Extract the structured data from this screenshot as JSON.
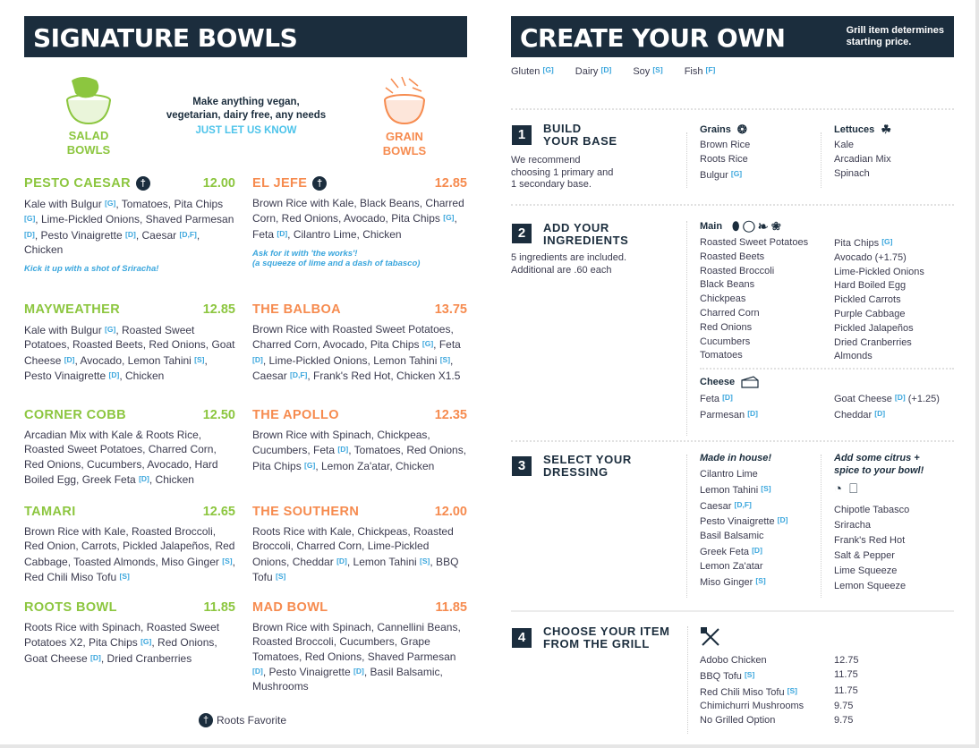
{
  "left": {
    "title": "SIGNATURE BOWLS",
    "salad_label": [
      "SALAD",
      "BOWLS"
    ],
    "grain_label": [
      "GRAIN",
      "BOWLS"
    ],
    "promo_line1": "Make anything vegan,",
    "promo_line2": "vegetarian, dairy free, any needs",
    "promo_link": "JUST LET US KNOW",
    "footer": "Roots Favorite",
    "colors": {
      "salad": "#8cc63f",
      "grain": "#f68b4f",
      "navy": "#1b2d3d",
      "tag": "#3aa6dd"
    },
    "salad_bowls": [
      {
        "name": "PESTO CAESAR",
        "favorite": true,
        "price": "12.00",
        "desc": [
          "Kale with Bulgur ",
          {
            "tag": "[G]"
          },
          ", Tomatoes, Pita Chips ",
          {
            "tag": "[G]"
          },
          ", Lime-Pickled Onions, Shaved Parmesan ",
          {
            "tag": "[D]"
          },
          ", Pesto Vinaigrette ",
          {
            "tag": "[D]"
          },
          ", Caesar ",
          {
            "tag": "[D,F]"
          },
          ", Chicken"
        ],
        "note": "Kick it up with a shot of Sriracha!"
      },
      {
        "name": "MAYWEATHER",
        "price": "12.85",
        "desc": [
          "Kale with Bulgur ",
          {
            "tag": "[G]"
          },
          ", Roasted Sweet Potatoes, Roasted Beets, Red Onions, Goat Cheese ",
          {
            "tag": "[D]"
          },
          ", Avocado, Lemon Tahini ",
          {
            "tag": "[S]"
          },
          ", Pesto Vinaigrette ",
          {
            "tag": "[D]"
          },
          ", Chicken"
        ]
      },
      {
        "name": "CORNER COBB",
        "price": "12.50",
        "desc": [
          "Arcadian Mix with Kale & Roots Rice, Roasted Sweet Potatoes, Charred Corn, Red Onions, Cucumbers, Avocado, Hard Boiled Egg, Greek Feta ",
          {
            "tag": "[D]"
          },
          ", Chicken"
        ]
      },
      {
        "name": "TAMARI",
        "price": "12.65",
        "desc": [
          "Brown Rice with Kale, Roasted Broccoli, Red Onion, Carrots, Pickled Jalapeños, Red Cabbage, Toasted Almonds, Miso Ginger ",
          {
            "tag": "[S]"
          },
          ", Red Chili Miso Tofu ",
          {
            "tag": "[S]"
          }
        ]
      },
      {
        "name": "ROOTS BOWL",
        "price": "11.85",
        "desc": [
          "Roots Rice with Spinach, Roasted Sweet Potatoes X2, Pita Chips ",
          {
            "tag": "[G]"
          },
          ", Red Onions, Goat Cheese ",
          {
            "tag": "[D]"
          },
          ", Dried Cranberries"
        ]
      }
    ],
    "grain_bowls": [
      {
        "name": "EL JEFE",
        "favorite": true,
        "price": "12.85",
        "desc": [
          "Brown Rice with Kale, Black Beans, Charred Corn, Red Onions, Avocado, Pita Chips ",
          {
            "tag": "[G]"
          },
          ", Feta ",
          {
            "tag": "[D]"
          },
          ", Cilantro Lime, Chicken"
        ],
        "note": "Ask for it with 'the works'!",
        "note2": "(a squeeze of lime and a dash of tabasco)"
      },
      {
        "name": "THE BALBOA",
        "price": "13.75",
        "desc": [
          "Brown Rice with Roasted Sweet Potatoes, Charred Corn, Avocado, Pita Chips ",
          {
            "tag": "[G]"
          },
          ", Feta ",
          {
            "tag": "[D]"
          },
          ", Lime-Pickled Onions, Lemon Tahini ",
          {
            "tag": "[S]"
          },
          ", Caesar ",
          {
            "tag": "[D,F]"
          },
          ", Frank's Red Hot, Chicken X1.5"
        ]
      },
      {
        "name": "THE APOLLO",
        "price": "12.35",
        "desc": [
          "Brown Rice with Spinach, Chickpeas, Cucumbers, Feta ",
          {
            "tag": "[D]"
          },
          ", Tomatoes, Red Onions, Pita Chips ",
          {
            "tag": "[G]"
          },
          ", Lemon Za'atar, Chicken"
        ]
      },
      {
        "name": "THE SOUTHERN",
        "price": "12.00",
        "desc": [
          "Roots Rice with Kale, Chickpeas, Roasted Broccoli, Charred Corn, Lime-Pickled Onions, Cheddar ",
          {
            "tag": "[D]"
          },
          ", Lemon Tahini ",
          {
            "tag": "[S]"
          },
          ", BBQ Tofu ",
          {
            "tag": "[S]"
          }
        ]
      },
      {
        "name": "MAD BOWL",
        "price": "11.85",
        "desc": [
          "Brown Rice with Spinach, Cannellini Beans, Roasted Broccoli, Cucumbers, Grape Tomatoes, Red Onions, Shaved Parmesan ",
          {
            "tag": "[D]"
          },
          ", Pesto Vinaigrette ",
          {
            "tag": "[D]"
          },
          ", Basil Balsamic, Mushrooms"
        ]
      }
    ]
  },
  "right": {
    "title": "CREATE YOUR OWN",
    "note": [
      "Grill item determines",
      "starting price."
    ],
    "legend": [
      {
        "label": "Gluten",
        "tag": "[G]"
      },
      {
        "label": "Dairy",
        "tag": "[D]"
      },
      {
        "label": "Soy",
        "tag": "[S]"
      },
      {
        "label": "Fish",
        "tag": "[F]"
      }
    ],
    "step1": {
      "number": "1",
      "title": [
        "BUILD",
        "YOUR BASE"
      ],
      "desc": [
        "We recommend",
        "choosing 1 primary and",
        "1 secondary base."
      ],
      "grains_label": "Grains",
      "grains": [
        {
          "t": "Brown Rice"
        },
        {
          "t": "Roots Rice"
        },
        {
          "t": "Bulgur",
          "tag": "[G]"
        }
      ],
      "lettuces_label": "Lettuces",
      "lettuces": [
        {
          "t": "Kale"
        },
        {
          "t": "Arcadian Mix"
        },
        {
          "t": "Spinach"
        }
      ]
    },
    "step2": {
      "number": "2",
      "title": [
        "ADD YOUR",
        "INGREDIENTS"
      ],
      "desc": [
        "5 ingredients are included.",
        "Additional are .60 each"
      ],
      "main_label": "Main",
      "main_col1": [
        {
          "t": "Roasted Sweet Potatoes"
        },
        {
          "t": "Roasted Beets"
        },
        {
          "t": "Roasted Broccoli"
        },
        {
          "t": "Black Beans"
        },
        {
          "t": "Chickpeas"
        },
        {
          "t": "Charred Corn"
        },
        {
          "t": "Red Onions"
        },
        {
          "t": "Cucumbers"
        },
        {
          "t": "Tomatoes"
        }
      ],
      "main_col2": [
        {
          "t": "Pita Chips",
          "tag": "[G]"
        },
        {
          "t": "Avocado (+1.75)"
        },
        {
          "t": "Lime-Pickled Onions"
        },
        {
          "t": "Hard Boiled Egg"
        },
        {
          "t": "Pickled Carrots"
        },
        {
          "t": "Purple Cabbage"
        },
        {
          "t": "Pickled Jalapeños"
        },
        {
          "t": "Dried Cranberries"
        },
        {
          "t": "Almonds"
        }
      ],
      "cheese_label": "Cheese",
      "cheese_col1": [
        {
          "t": "Feta",
          "tag": "[D]"
        },
        {
          "t": "Parmesan",
          "tag": "[D]"
        }
      ],
      "cheese_col2": [
        {
          "t": "Goat Cheese",
          "tag": "[D]",
          "after": " (+1.25)"
        },
        {
          "t": "Cheddar",
          "tag": "[D]"
        }
      ]
    },
    "step3": {
      "number": "3",
      "title": [
        "SELECT YOUR",
        "DRESSING"
      ],
      "house_label": "Made in house!",
      "dressings": [
        {
          "t": "Cilantro Lime"
        },
        {
          "t": "Lemon Tahini",
          "tag": "[S]"
        },
        {
          "t": "Caesar",
          "tag": "[D,F]"
        },
        {
          "t": "Pesto Vinaigrette",
          "tag": "[D]"
        },
        {
          "t": "Basil Balsamic"
        },
        {
          "t": "Greek Feta",
          "tag": "[D]"
        },
        {
          "t": "Lemon Za'atar"
        },
        {
          "t": "Miso Ginger",
          "tag": "[S]"
        }
      ],
      "citrus_label": [
        "Add some citrus +",
        "spice to your bowl!"
      ],
      "extras": [
        {
          "t": "Chipotle Tabasco"
        },
        {
          "t": "Sriracha"
        },
        {
          "t": "Frank's Red Hot"
        },
        {
          "t": "Salt & Pepper"
        },
        {
          "t": "Lime Squeeze"
        },
        {
          "t": "Lemon Squeeze"
        }
      ]
    },
    "step4": {
      "number": "4",
      "title": [
        "CHOOSE YOUR ITEM",
        "FROM THE GRILL"
      ],
      "items": [
        {
          "t": "Adobo Chicken",
          "price": "12.75"
        },
        {
          "t": "BBQ Tofu",
          "tag": "[S]",
          "price": "11.75"
        },
        {
          "t": "Red Chili Miso Tofu",
          "tag": "[S]",
          "price": "11.75"
        },
        {
          "t": "Chimichurri Mushrooms",
          "price": "9.75"
        },
        {
          "t": "No Grilled Option",
          "price": "9.75"
        }
      ]
    }
  }
}
